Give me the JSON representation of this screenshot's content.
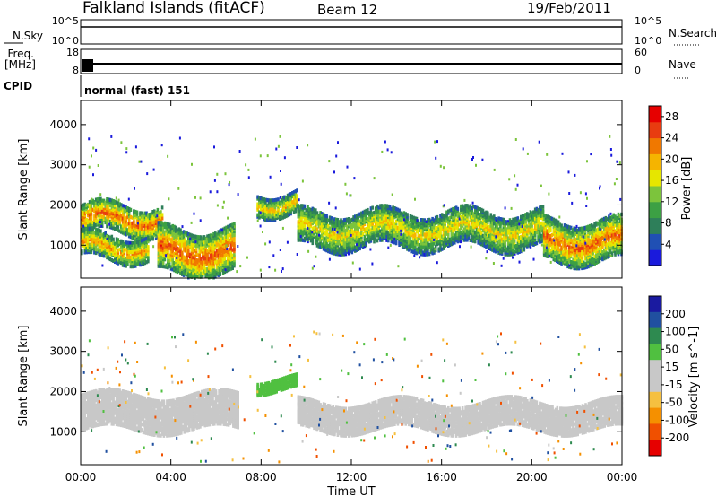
{
  "header": {
    "station": "Falkland Islands (fitACF)",
    "beam": "Beam 12",
    "date": "19/Feb/2011"
  },
  "noise_panel": {
    "left_label": "N.Sky",
    "right_label": "N.Search",
    "left_ticks": [
      "10^5",
      "10^0"
    ],
    "right_ticks": [
      "10^5",
      "10^0"
    ]
  },
  "freq_panel": {
    "left_label_1": "Freq.",
    "left_label_2": "[MHz]",
    "right_label": "Nave",
    "left_ticks": [
      "18",
      "8"
    ],
    "right_ticks": [
      "60",
      "0"
    ]
  },
  "cpid": {
    "label": "CPID",
    "mode": "normal (fast) 151"
  },
  "colors": {
    "power_scale": [
      "#1a1adc",
      "#2050b4",
      "#2e7f5a",
      "#3ca044",
      "#7cc43c",
      "#e6e600",
      "#f5b400",
      "#f07800",
      "#e83c10",
      "#e60000"
    ],
    "velocity_scale": [
      "#e60000",
      "#f05000",
      "#f59000",
      "#f5c040",
      "#c8c8c8",
      "#c8c8c8",
      "#50c040",
      "#2e8a50",
      "#2050a0",
      "#1a1aa0"
    ]
  },
  "chart_data": [
    {
      "type": "heatmap",
      "name": "power",
      "ylabel": "Slant Range [km]",
      "xlabel": "Time UT",
      "x_ticks": [
        "00:00",
        "04:00",
        "08:00",
        "12:00",
        "16:00",
        "20:00",
        "00:00"
      ],
      "xlim_hours": [
        0,
        24
      ],
      "ylim": [
        180,
        4600
      ],
      "y_ticks": [
        1000,
        2000,
        3000,
        4000
      ],
      "colorbar": {
        "label": "Power [dB]",
        "ticks": [
          4,
          8,
          12,
          16,
          20,
          24,
          28
        ],
        "range": [
          0,
          30
        ]
      },
      "bands": [
        {
          "start_hour": 0.0,
          "end_hour": 3.6,
          "center_km": 1650,
          "width_km": 350,
          "level_db": 24
        },
        {
          "start_hour": 0.0,
          "end_hour": 3.0,
          "center_km": 950,
          "width_km": 300,
          "level_db": 21
        },
        {
          "start_hour": 3.4,
          "end_hour": 6.8,
          "center_km": 850,
          "width_km": 550,
          "level_db": 25
        },
        {
          "start_hour": 7.8,
          "end_hour": 9.6,
          "center_km": 2050,
          "width_km": 250,
          "level_db": 20
        },
        {
          "start_hour": 9.6,
          "end_hour": 20.5,
          "center_km": 1400,
          "width_km": 450,
          "level_db": 18
        },
        {
          "start_hour": 20.5,
          "end_hour": 24.0,
          "center_km": 1100,
          "width_km": 500,
          "level_db": 24
        }
      ]
    },
    {
      "type": "heatmap",
      "name": "velocity",
      "ylabel": "Slant Range [km]",
      "xlabel": "Time UT",
      "x_ticks": [
        "00:00",
        "04:00",
        "08:00",
        "12:00",
        "16:00",
        "20:00",
        "00:00"
      ],
      "xlim_hours": [
        0,
        24
      ],
      "ylim": [
        180,
        4600
      ],
      "y_ticks": [
        1000,
        2000,
        3000,
        4000
      ],
      "colorbar": {
        "label": "Velocity [m s^-1]",
        "ticks": [
          200,
          100,
          50,
          15,
          -15,
          -50,
          -100,
          -200
        ]
      },
      "bands": [
        {
          "start_hour": 0.0,
          "end_hour": 7.0,
          "center_km": 1500,
          "width_km": 900,
          "vel_ms": 0
        },
        {
          "start_hour": 7.8,
          "end_hour": 9.6,
          "center_km": 2200,
          "width_km": 300,
          "vel_ms": 30
        },
        {
          "start_hour": 9.6,
          "end_hour": 24.0,
          "center_km": 1400,
          "width_km": 700,
          "vel_ms": 0
        }
      ]
    }
  ],
  "x_axis": {
    "ticks": [
      "00:00",
      "04:00",
      "08:00",
      "12:00",
      "16:00",
      "20:00",
      "00:00"
    ],
    "label": "Time UT"
  }
}
